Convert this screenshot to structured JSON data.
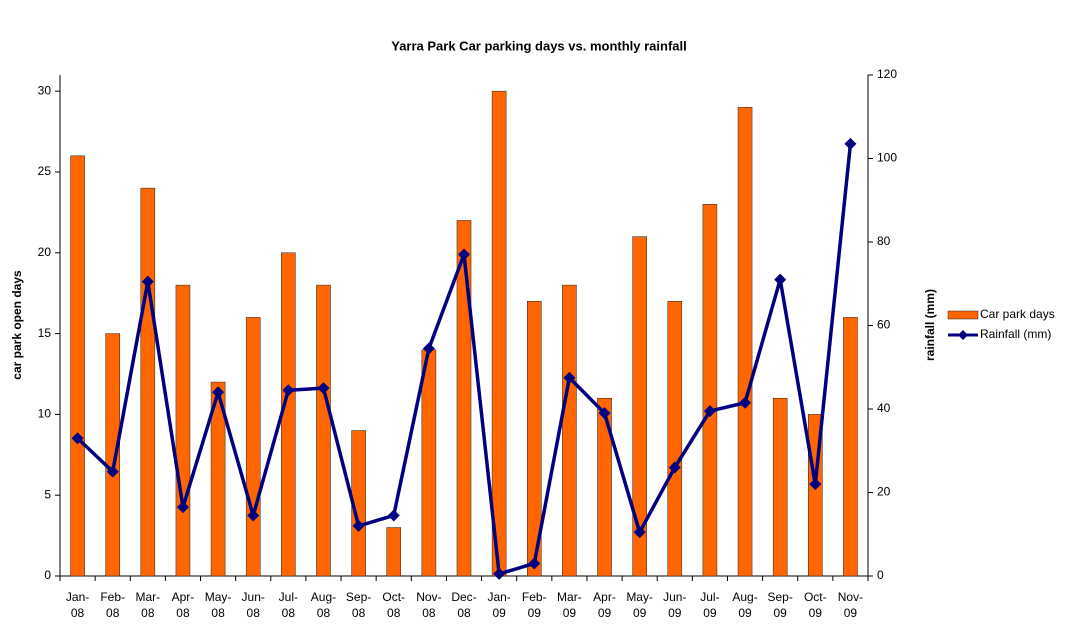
{
  "chart_data": {
    "type": "bar_line",
    "title": "Yarra Park Car parking days vs. monthly rainfall",
    "ylabel": "car park open days",
    "y2label": "rainfall (mm)",
    "categories": [
      "Jan-08",
      "Feb-08",
      "Mar-08",
      "Apr-08",
      "May-08",
      "Jun-08",
      "Jul-08",
      "Aug-08",
      "Sep-08",
      "Oct-08",
      "Nov-08",
      "Dec-08",
      "Jan-09",
      "Feb-09",
      "Mar-09",
      "Apr-09",
      "May-09",
      "Jun-09",
      "Jul-09",
      "Aug-09",
      "Sep-09",
      "Oct-09",
      "Nov-09"
    ],
    "series": [
      {
        "name": "Car park days",
        "type": "bar",
        "color": "#ff6600",
        "values": [
          26,
          15,
          24,
          18,
          12,
          16,
          20,
          18,
          9,
          3,
          14,
          22,
          30,
          17,
          18,
          11,
          21,
          17,
          23,
          29,
          11,
          10,
          16
        ]
      },
      {
        "name": "Rainfall (mm)",
        "type": "line",
        "axis": "y2",
        "color": "#000080",
        "values": [
          33,
          25,
          70.5,
          16.5,
          44,
          14.5,
          44.5,
          45,
          12,
          14.5,
          54.5,
          77,
          0.5,
          3,
          47.5,
          39,
          10.5,
          26,
          39.5,
          41.5,
          71,
          22,
          103.5
        ]
      }
    ],
    "ylim": [
      0,
      31
    ],
    "yticks": [
      0,
      5,
      10,
      15,
      20,
      25,
      30
    ],
    "y2lim": [
      0,
      120
    ],
    "y2ticks": [
      0,
      20,
      40,
      60,
      80,
      100,
      120
    ],
    "legend": "right"
  }
}
